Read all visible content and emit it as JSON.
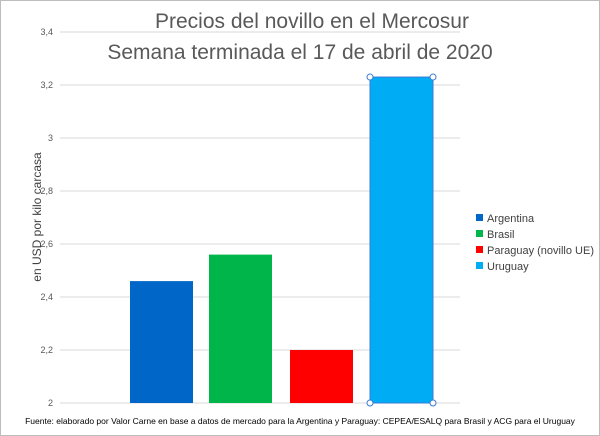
{
  "chart_data": {
    "type": "bar",
    "title": "Precios del novillo en el Mercosur",
    "subtitle": "Semana terminada el 17 de abril de 2020",
    "ylabel": "en USD por kilo carcasa",
    "xlabel": "",
    "ylim": [
      2,
      3.4
    ],
    "yticks": [
      "2",
      "2,2",
      "2,4",
      "2,6",
      "2,8",
      "3",
      "3,2",
      "3,4"
    ],
    "grid": true,
    "legend_position": "right",
    "series": [
      {
        "name": "Argentina",
        "value": 2.46,
        "color": "#0066c8"
      },
      {
        "name": "Brasil",
        "value": 2.56,
        "color": "#00b54a"
      },
      {
        "name": "Paraguay (novillo UE)",
        "value": 2.2,
        "color": "#ff0000"
      },
      {
        "name": "Uruguay",
        "value": 3.23,
        "color": "#00adf5"
      }
    ],
    "source_note": "Fuente: elaborado por Valor Carne en base a datos de mercado para la Argentina y Paraguay: CEPEA/ESALQ para Brasil y ACG para el Uruguay"
  }
}
